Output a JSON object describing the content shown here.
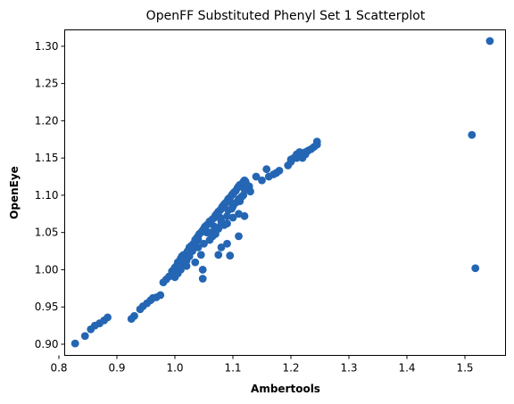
{
  "chart_data": {
    "type": "scatter",
    "title": "OpenFF Substituted Phenyl Set 1 Scatterplot",
    "xlabel": "Ambertools",
    "ylabel": "OpenEye",
    "xlim": [
      0.81,
      1.57
    ],
    "ylim": [
      0.885,
      1.322
    ],
    "xticks": [
      "0.8",
      "0.9",
      "1.0",
      "1.1",
      "1.2",
      "1.3",
      "1.4",
      "1.5"
    ],
    "yticks": [
      "0.90",
      "0.95",
      "1.00",
      "1.05",
      "1.10",
      "1.15",
      "1.20",
      "1.25",
      "1.30"
    ],
    "grid": false,
    "marker_color": "#2466b3",
    "series": [
      {
        "x": [
          0.828,
          0.845,
          0.855,
          0.862,
          0.87,
          0.878,
          0.884,
          0.925,
          0.93,
          0.94,
          0.945,
          0.952,
          0.958,
          0.962,
          0.968,
          0.975,
          0.98,
          0.985,
          0.99,
          0.995,
          0.998,
          1.0,
          1.003,
          1.005,
          1.008,
          1.01,
          1.012,
          1.015,
          1.018,
          1.02,
          1.022,
          1.025,
          1.028,
          1.03,
          1.032,
          1.035,
          1.038,
          1.04,
          1.042,
          1.045,
          1.048,
          1.05,
          1.052,
          1.055,
          1.058,
          1.06,
          1.062,
          1.065,
          1.068,
          1.07,
          1.072,
          1.075,
          1.078,
          1.08,
          1.082,
          1.085,
          1.088,
          1.09,
          1.092,
          1.095,
          1.098,
          1.1,
          1.102,
          1.105,
          1.108,
          1.11,
          1.112,
          1.115,
          1.118,
          1.12,
          1.122,
          1.125,
          1.128,
          1.13,
          1.14,
          1.15,
          1.158,
          1.162,
          1.17,
          1.175,
          1.18,
          1.195,
          1.2,
          1.205,
          1.21,
          1.215,
          1.22,
          1.225,
          1.23,
          1.235,
          1.24,
          1.245,
          1.0,
          1.005,
          1.01,
          1.02,
          1.035,
          1.045,
          1.06,
          1.075,
          1.09,
          1.1,
          1.11,
          1.02,
          1.03,
          1.05,
          1.07,
          1.085,
          1.1,
          1.11,
          1.048,
          1.08,
          1.092,
          1.105,
          1.115,
          1.12,
          1.128,
          1.04,
          1.055,
          1.068,
          1.078,
          1.098,
          1.118,
          1.245,
          1.225,
          1.21,
          1.2,
          1.0,
          1.01,
          1.06,
          1.04,
          1.1,
          1.08,
          1.065,
          1.09,
          1.07,
          1.025,
          1.112,
          1.512,
          1.518,
          1.543
        ],
        "y": [
          0.901,
          0.911,
          0.92,
          0.925,
          0.928,
          0.932,
          0.936,
          0.934,
          0.938,
          0.947,
          0.951,
          0.955,
          0.959,
          0.962,
          0.963,
          0.966,
          0.983,
          0.987,
          0.991,
          0.998,
          1.0,
          1.003,
          1.005,
          1.01,
          1.012,
          1.015,
          1.018,
          1.02,
          1.02,
          1.022,
          1.025,
          1.03,
          1.032,
          1.033,
          1.035,
          1.04,
          1.043,
          1.045,
          1.048,
          1.05,
          1.053,
          1.055,
          1.058,
          1.06,
          1.062,
          1.065,
          1.065,
          1.068,
          1.07,
          1.073,
          1.075,
          1.078,
          1.08,
          1.082,
          1.085,
          1.088,
          1.09,
          1.092,
          1.095,
          1.097,
          1.1,
          1.102,
          1.104,
          1.106,
          1.11,
          1.112,
          1.114,
          1.115,
          1.118,
          1.12,
          1.118,
          1.112,
          1.108,
          1.105,
          1.125,
          1.12,
          1.135,
          1.125,
          1.128,
          1.13,
          1.133,
          1.14,
          1.145,
          1.15,
          1.155,
          1.158,
          1.15,
          1.155,
          1.16,
          1.162,
          1.165,
          1.168,
          0.998,
          0.995,
          1.0,
          1.005,
          1.01,
          1.02,
          1.04,
          1.055,
          1.062,
          1.07,
          1.075,
          1.012,
          1.025,
          1.035,
          1.048,
          1.06,
          1.085,
          1.095,
          1.0,
          1.065,
          1.08,
          1.09,
          1.098,
          1.108,
          1.112,
          1.04,
          1.05,
          1.058,
          1.07,
          1.082,
          1.1,
          1.172,
          1.158,
          1.15,
          1.148,
          0.99,
          1.008,
          1.05,
          1.03,
          1.088,
          1.06,
          1.045,
          1.072,
          1.055,
          1.018,
          1.092,
          1.181,
          1.002,
          1.307
        ]
      },
      {
        "x": [
          1.048,
          1.075,
          1.095,
          1.08,
          1.09,
          1.11,
          1.12
        ],
        "y": [
          0.988,
          1.02,
          1.019,
          1.03,
          1.035,
          1.045,
          1.072
        ]
      }
    ]
  }
}
